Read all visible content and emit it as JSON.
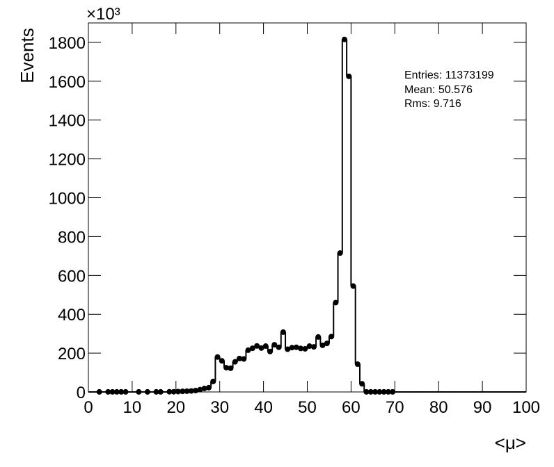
{
  "chart_data": {
    "type": "histogram",
    "y_label": "Events",
    "x_label": "<μ>",
    "y_multiplier": "×10³",
    "stats": [
      "Entries: 11373199",
      "Mean: 50.576",
      "Rms: 9.716"
    ],
    "color": "#000000",
    "bins": [
      0,
      1,
      2,
      3,
      4,
      5,
      6,
      7,
      8,
      9,
      10,
      11,
      12,
      13,
      14,
      15,
      16,
      17,
      18,
      19,
      20,
      21,
      22,
      23,
      24,
      25,
      26,
      27,
      28,
      29,
      30,
      31,
      32,
      33,
      34,
      35,
      36,
      37,
      38,
      39,
      40,
      41,
      42,
      43,
      44,
      45,
      46,
      47,
      48,
      49,
      50,
      51,
      52,
      53,
      54,
      55,
      56,
      57,
      58,
      59,
      60,
      61,
      62,
      63,
      64,
      65,
      66,
      67,
      68,
      69,
      70,
      71,
      72,
      73,
      74,
      75,
      76,
      77,
      78,
      79,
      80,
      81,
      82,
      83,
      84,
      85,
      86,
      87,
      88,
      89,
      90,
      91,
      92,
      93,
      94,
      95,
      96,
      97,
      98,
      99,
      100
    ],
    "values": [
      0,
      0,
      0.3,
      0,
      0.3,
      0.3,
      0.3,
      0.3,
      0.3,
      0,
      0,
      0.3,
      0,
      0.3,
      0,
      0.3,
      0.3,
      0,
      1,
      1,
      2,
      3,
      4,
      5,
      7,
      12,
      18,
      22,
      54,
      180,
      160,
      125,
      122,
      155,
      172,
      170,
      215,
      225,
      237,
      226,
      236,
      208,
      243,
      230,
      308,
      220,
      228,
      230,
      224,
      222,
      236,
      232,
      283,
      240,
      250,
      285,
      460,
      715,
      1815,
      1625,
      545,
      143,
      42,
      0.5,
      0.5,
      0.5,
      0.5,
      0.5,
      0.5,
      0.5,
      0,
      0,
      0,
      0,
      0,
      0,
      0,
      0,
      0,
      0,
      0,
      0,
      0,
      0,
      0,
      0,
      0,
      0,
      0,
      0,
      0,
      0,
      0,
      0,
      0,
      0,
      0,
      0,
      0,
      0
    ],
    "xlim": [
      0,
      100
    ],
    "xticks": [
      0,
      10,
      20,
      30,
      40,
      50,
      60,
      70,
      80,
      90,
      100
    ],
    "ylim": [
      0,
      1900
    ],
    "yticks": [
      0,
      200,
      400,
      600,
      800,
      1000,
      1200,
      1400,
      1600,
      1800
    ]
  }
}
